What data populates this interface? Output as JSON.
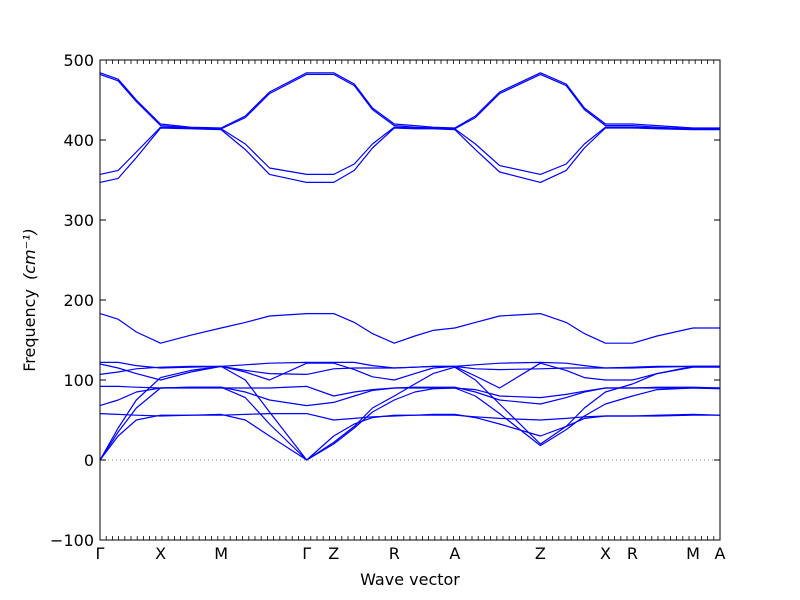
{
  "chart_data": {
    "type": "line",
    "title": "",
    "xlabel": "Wave vector",
    "ylabel": "Frequency",
    "ylabel_unit": "(cm⁻¹)",
    "ylim": [
      -100,
      500
    ],
    "yticks": [
      -100,
      0,
      100,
      200,
      300,
      400,
      500
    ],
    "grid": false,
    "series_color": "#0000ff",
    "zero_line_color": "#7f7f9f",
    "x_ticks": [
      {
        "label": "Γ",
        "x": 0
      },
      {
        "label": "X",
        "x": 0.5
      },
      {
        "label": "M",
        "x": 1.0
      },
      {
        "label": "Γ",
        "x": 1.707
      },
      {
        "label": "Z",
        "x": 1.93
      },
      {
        "label": "R",
        "x": 2.43
      },
      {
        "label": "A",
        "x": 2.93
      },
      {
        "label": "Z",
        "x": 3.637
      },
      {
        "label": "X",
        "x": 4.174
      },
      {
        "label": "R",
        "x": 4.397
      },
      {
        "label": "M",
        "x": 4.897
      },
      {
        "label": "A",
        "x": 5.12
      }
    ],
    "xlim": [
      0,
      5.12
    ],
    "series": [
      {
        "x": [
          0,
          0.15,
          0.3,
          0.5,
          0.75,
          1.0,
          1.2,
          1.4,
          1.707,
          1.93,
          2.1,
          2.25,
          2.43,
          2.6,
          2.75,
          2.93,
          3.1,
          3.3,
          3.637,
          3.85,
          4.0,
          4.174,
          4.397,
          4.6,
          4.897,
          5.12
        ],
        "y": [
          484,
          476,
          450,
          420,
          416,
          415,
          430,
          460,
          484,
          484,
          470,
          440,
          420,
          418,
          416,
          415,
          430,
          460,
          484,
          470,
          440,
          420,
          420,
          418,
          415,
          415
        ]
      },
      {
        "x": [
          0,
          0.15,
          0.3,
          0.5,
          0.75,
          1.0,
          1.2,
          1.4,
          1.707,
          1.93,
          2.1,
          2.25,
          2.43,
          2.6,
          2.75,
          2.93,
          3.1,
          3.3,
          3.637,
          3.85,
          4.0,
          4.174,
          4.397,
          4.6,
          4.897,
          5.12
        ],
        "y": [
          482,
          474,
          448,
          418,
          415,
          414,
          428,
          458,
          482,
          482,
          468,
          438,
          418,
          416,
          415,
          414,
          428,
          458,
          482,
          468,
          438,
          418,
          418,
          416,
          414,
          414
        ]
      },
      {
        "x": [
          0,
          0.15,
          0.3,
          0.5,
          0.75,
          1.0,
          1.2,
          1.4,
          1.707,
          1.93,
          2.1,
          2.25,
          2.43,
          2.6,
          2.75,
          2.93,
          3.1,
          3.3,
          3.637,
          3.85,
          4.0,
          4.174,
          4.397,
          4.6,
          4.897,
          5.12
        ],
        "y": [
          357,
          362,
          385,
          416,
          415,
          414,
          395,
          365,
          357,
          357,
          370,
          395,
          416,
          415,
          415,
          414,
          395,
          368,
          357,
          370,
          395,
          416,
          416,
          415,
          414,
          414
        ]
      },
      {
        "x": [
          0,
          0.15,
          0.3,
          0.5,
          0.75,
          1.0,
          1.2,
          1.4,
          1.707,
          1.93,
          2.1,
          2.25,
          2.43,
          2.6,
          2.75,
          2.93,
          3.1,
          3.3,
          3.637,
          3.85,
          4.0,
          4.174,
          4.397,
          4.6,
          4.897,
          5.12
        ],
        "y": [
          347,
          352,
          378,
          415,
          414,
          413,
          388,
          357,
          347,
          347,
          362,
          390,
          415,
          414,
          414,
          413,
          388,
          360,
          347,
          362,
          390,
          415,
          415,
          414,
          413,
          413
        ]
      },
      {
        "x": [
          0,
          0.15,
          0.3,
          0.5,
          0.75,
          1.0,
          1.2,
          1.4,
          1.707,
          1.93,
          2.1,
          2.25,
          2.43,
          2.6,
          2.75,
          2.93,
          3.1,
          3.3,
          3.637,
          3.85,
          4.0,
          4.174,
          4.397,
          4.6,
          4.897,
          5.12
        ],
        "y": [
          183,
          176,
          160,
          146,
          156,
          165,
          172,
          180,
          183,
          183,
          172,
          158,
          146,
          155,
          162,
          165,
          172,
          180,
          183,
          172,
          158,
          146,
          146,
          155,
          165,
          165
        ]
      },
      {
        "x": [
          0,
          0.15,
          0.3,
          0.5,
          0.75,
          1.0,
          1.2,
          1.4,
          1.707,
          1.93,
          2.1,
          2.25,
          2.43,
          2.6,
          2.75,
          2.93,
          3.1,
          3.3,
          3.637,
          3.85,
          4.0,
          4.174,
          4.397,
          4.6,
          4.897,
          5.12
        ],
        "y": [
          122,
          122,
          118,
          115,
          116,
          117,
          119,
          121,
          122,
          122,
          122,
          118,
          115,
          116,
          117,
          117,
          119,
          121,
          122,
          121,
          118,
          115,
          116,
          117,
          117,
          117
        ]
      },
      {
        "x": [
          0,
          0.15,
          0.3,
          0.5,
          0.75,
          1.0,
          1.2,
          1.4,
          1.707,
          1.93,
          2.1,
          2.25,
          2.43,
          2.6,
          2.75,
          2.93,
          3.1,
          3.3,
          3.637,
          3.85,
          4.0,
          4.174,
          4.397,
          4.6,
          4.897,
          5.12
        ],
        "y": [
          107,
          110,
          114,
          116,
          117,
          117,
          112,
          108,
          107,
          114,
          115,
          115,
          115,
          116,
          117,
          117,
          114,
          113,
          114,
          115,
          115,
          115,
          115,
          116,
          117,
          117
        ]
      },
      {
        "x": [
          0,
          0.15,
          0.3,
          0.5,
          0.75,
          1.0,
          1.2,
          1.4,
          1.707,
          1.93,
          2.1,
          2.25,
          2.43,
          2.6,
          2.75,
          2.93,
          3.1,
          3.3,
          3.637,
          3.85,
          4.0,
          4.174,
          4.397,
          4.6,
          4.897,
          5.12
        ],
        "y": [
          120,
          115,
          108,
          100,
          110,
          117,
          110,
          100,
          121,
          121,
          113,
          104,
          100,
          108,
          115,
          117,
          105,
          90,
          121,
          112,
          103,
          100,
          100,
          108,
          117,
          117
        ]
      },
      {
        "x": [
          0,
          0.15,
          0.3,
          0.5,
          0.75,
          1.0,
          1.2,
          1.4,
          1.707,
          1.93,
          2.1,
          2.25,
          2.43,
          2.6,
          2.75,
          2.93,
          3.1,
          3.3,
          3.637,
          3.85,
          4.0,
          4.174,
          4.397,
          4.6,
          4.897,
          5.12
        ],
        "y": [
          92,
          92,
          91,
          90,
          90,
          90,
          90,
          90,
          92,
          80,
          85,
          88,
          90,
          90,
          90,
          90,
          88,
          80,
          78,
          82,
          86,
          90,
          90,
          90,
          90,
          89
        ]
      },
      {
        "x": [
          0,
          0.15,
          0.3,
          0.5,
          0.75,
          1.0,
          1.2,
          1.4,
          1.707,
          1.93,
          2.1,
          2.25,
          2.43,
          2.6,
          2.75,
          2.93,
          3.1,
          3.3,
          3.637,
          3.85,
          4.0,
          4.174,
          4.397,
          4.6,
          4.897,
          5.12
        ],
        "y": [
          68,
          75,
          85,
          90,
          91,
          91,
          85,
          75,
          68,
          72,
          80,
          87,
          90,
          91,
          91,
          91,
          85,
          75,
          70,
          78,
          85,
          90,
          90,
          91,
          91,
          90
        ]
      },
      {
        "x": [
          0,
          0.15,
          0.3,
          0.5,
          0.75,
          1.0,
          1.2,
          1.4,
          1.707,
          1.93,
          2.1,
          2.25,
          2.43,
          2.6,
          2.75,
          2.93,
          3.1,
          3.3,
          3.637,
          3.85,
          4.0,
          4.174,
          4.397,
          4.6,
          4.897,
          5.12
        ],
        "y": [
          58,
          57,
          56,
          55,
          56,
          56,
          57,
          58,
          58,
          50,
          52,
          54,
          55,
          56,
          56,
          56,
          54,
          52,
          50,
          52,
          54,
          55,
          55,
          55,
          56,
          56
        ]
      },
      {
        "x": [
          0,
          0.15,
          0.3,
          0.5,
          0.75,
          1.0,
          1.2,
          1.4,
          1.707,
          1.93,
          2.1,
          2.25,
          2.43,
          2.6,
          2.75,
          2.93,
          3.1,
          3.3,
          3.637,
          3.85,
          4.0,
          4.174,
          4.397,
          4.6,
          4.897,
          5.12
        ],
        "y": [
          0,
          30,
          50,
          56,
          56,
          57,
          50,
          30,
          0,
          30,
          45,
          53,
          56,
          56,
          57,
          57,
          53,
          45,
          30,
          42,
          52,
          55,
          55,
          56,
          57,
          56
        ]
      },
      {
        "x": [
          0,
          0.15,
          0.3,
          0.5,
          0.75,
          1.0,
          1.2,
          1.4,
          1.707,
          1.93,
          2.1,
          2.25,
          2.43,
          2.6,
          2.75,
          2.93,
          3.1,
          3.3,
          3.637,
          3.85,
          4.0,
          4.174,
          4.397,
          4.6,
          4.897,
          5.12
        ],
        "y": [
          0,
          35,
          65,
          90,
          91,
          91,
          78,
          45,
          0,
          20,
          40,
          60,
          75,
          85,
          89,
          90,
          80,
          58,
          18,
          38,
          55,
          70,
          80,
          88,
          90,
          90
        ]
      },
      {
        "x": [
          0,
          0.15,
          0.3,
          0.5,
          0.75,
          1.0,
          1.2,
          1.4,
          1.707,
          1.93,
          2.1,
          2.25,
          2.43,
          2.6,
          2.75,
          2.93,
          3.1,
          3.3,
          3.637,
          3.85,
          4.0,
          4.174,
          4.397,
          4.6,
          4.897,
          5.12
        ],
        "y": [
          0,
          40,
          75,
          103,
          112,
          117,
          100,
          60,
          0,
          22,
          42,
          65,
          80,
          95,
          108,
          116,
          100,
          70,
          20,
          42,
          65,
          85,
          95,
          108,
          116,
          116
        ]
      }
    ]
  }
}
